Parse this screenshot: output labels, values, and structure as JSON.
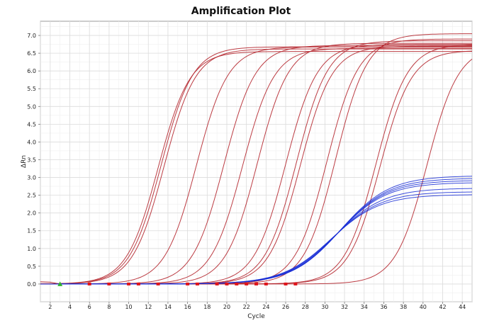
{
  "chart_data": {
    "type": "line",
    "title": "Amplification Plot",
    "xlabel": "Cycle",
    "ylabel": "ΔRn",
    "xlim": [
      1,
      45
    ],
    "ylim": [
      -0.5,
      7.4
    ],
    "x_ticks": [
      2,
      4,
      6,
      8,
      10,
      12,
      14,
      16,
      18,
      20,
      22,
      24,
      26,
      28,
      30,
      32,
      34,
      36,
      38,
      40,
      42,
      44
    ],
    "y_ticks": [
      "0.0",
      "0.5",
      "1.0",
      "1.5",
      "2.0",
      "2.5",
      "3.0",
      "3.5",
      "4.0",
      "4.5",
      "5.0",
      "5.5",
      "6.0",
      "6.5",
      "7.0"
    ],
    "grid": true,
    "legend": "none",
    "colors": {
      "red_series": "#b5272f",
      "blue_series": "#1a2fd6",
      "threshold_marker": "#e0141b",
      "baseline_marker": "#2fb32f"
    },
    "red_curves": [
      {
        "midpoint_cycle": 13.0,
        "plateau": 6.55
      },
      {
        "midpoint_cycle": 13.3,
        "plateau": 6.68
      },
      {
        "midpoint_cycle": 13.6,
        "plateau": 6.62
      },
      {
        "midpoint_cycle": 16.9,
        "plateau": 6.68
      },
      {
        "midpoint_cycle": 19.7,
        "plateau": 6.72
      },
      {
        "midpoint_cycle": 21.6,
        "plateau": 6.64
      },
      {
        "midpoint_cycle": 23.1,
        "plateau": 6.78
      },
      {
        "midpoint_cycle": 26.0,
        "plateau": 6.75
      },
      {
        "midpoint_cycle": 27.1,
        "plateau": 6.85
      },
      {
        "midpoint_cycle": 27.5,
        "plateau": 6.7
      },
      {
        "midpoint_cycle": 30.2,
        "plateau": 6.9
      },
      {
        "midpoint_cycle": 31.1,
        "plateau": 7.05
      },
      {
        "midpoint_cycle": 35.2,
        "plateau": 6.75
      },
      {
        "midpoint_cycle": 35.6,
        "plateau": 6.58
      },
      {
        "midpoint_cycle": 40.4,
        "plateau": 6.7
      }
    ],
    "blue_curves": [
      {
        "midpoint_cycle": 31.6,
        "plateau": 3.05
      },
      {
        "midpoint_cycle": 31.5,
        "plateau": 2.98
      },
      {
        "midpoint_cycle": 31.4,
        "plateau": 2.92
      },
      {
        "midpoint_cycle": 31.3,
        "plateau": 2.86
      },
      {
        "midpoint_cycle": 31.0,
        "plateau": 2.7
      },
      {
        "midpoint_cycle": 30.8,
        "plateau": 2.6
      },
      {
        "midpoint_cycle": 30.6,
        "plateau": 2.52
      }
    ],
    "threshold_markers_cycles": [
      6,
      8,
      10,
      11,
      13,
      16,
      17,
      19,
      20,
      21,
      22,
      23,
      24,
      26,
      27
    ],
    "baseline_marker_cycle": 3
  }
}
